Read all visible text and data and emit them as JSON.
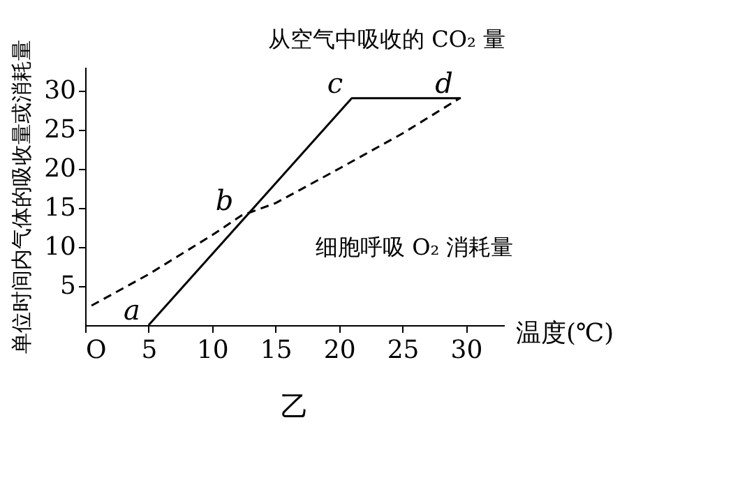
{
  "chart_data": {
    "type": "line",
    "xlabel": "温度(℃)",
    "ylabel": "单位时间内气体的吸收量或消耗量",
    "xlim": [
      0,
      33
    ],
    "ylim": [
      0,
      33
    ],
    "xticks": [
      {
        "value": 0,
        "label": "O"
      },
      5,
      10,
      15,
      20,
      25,
      30
    ],
    "yticks": [
      5,
      10,
      15,
      20,
      25,
      30
    ],
    "grid": false,
    "marker": "none",
    "series": [
      {
        "name": "从空气中吸收的 CO₂ 量",
        "color": "#000000",
        "line_style": "solid",
        "x": [
          5,
          21,
          29.6
        ],
        "values": [
          0,
          29,
          29
        ]
      },
      {
        "name": "细胞呼吸 O₂ 消耗量",
        "color": "#000000",
        "line_style": "dashed",
        "x": [
          0.5,
          5,
          10,
          12.3,
          15,
          20,
          25,
          29.5
        ],
        "values": [
          2.5,
          6.5,
          11.5,
          14,
          15.6,
          20,
          24.5,
          29
        ]
      }
    ],
    "annotations": [
      {
        "text": "a",
        "x": 5,
        "y": 0
      },
      {
        "text": "b",
        "x": 12.3,
        "y": 14
      },
      {
        "text": "c",
        "x": 21,
        "y": 29
      },
      {
        "text": "d",
        "x": 29.6,
        "y": 29
      },
      "乙"
    ]
  }
}
